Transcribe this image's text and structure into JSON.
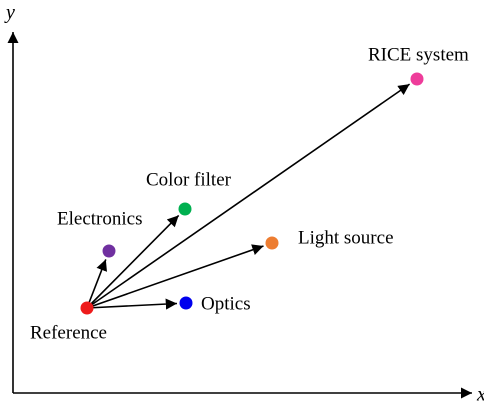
{
  "axes": {
    "x": "x",
    "y": "y"
  },
  "nodes": [
    {
      "label": "Reference"
    },
    {
      "label": "Electronics"
    },
    {
      "label": "Color filter"
    },
    {
      "label": "Light source"
    },
    {
      "label": "Optics"
    },
    {
      "label": "RICE system"
    }
  ]
}
